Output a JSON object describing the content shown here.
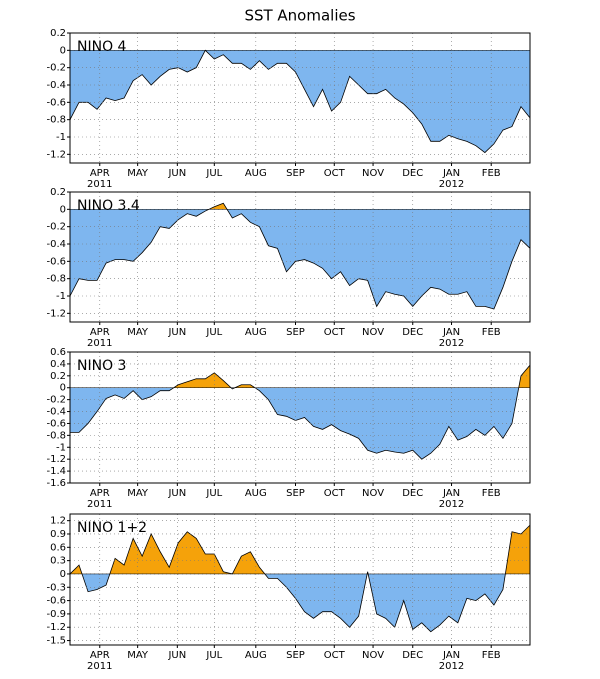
{
  "title": "SST Anomalies",
  "chart_data": [
    {
      "type": "area",
      "label": "NINO 4",
      "ylim": [
        -1.3,
        0.2
      ],
      "yticks": [
        0.2,
        0,
        -0.2,
        -0.4,
        -0.6,
        -0.8,
        -1,
        -1.2
      ],
      "xlim": [
        0,
        51
      ],
      "xticks": [
        {
          "value": 3.3,
          "label": "APR"
        },
        {
          "value": 7.5,
          "label": "MAY"
        },
        {
          "value": 11.9,
          "label": "JUN"
        },
        {
          "value": 16,
          "label": "JUL"
        },
        {
          "value": 20.6,
          "label": "AUG"
        },
        {
          "value": 25,
          "label": "SEP"
        },
        {
          "value": 29.3,
          "label": "OCT"
        },
        {
          "value": 33.6,
          "label": "NOV"
        },
        {
          "value": 38,
          "label": "DEC"
        },
        {
          "value": 42.3,
          "label": "JAN"
        },
        {
          "value": 46.7,
          "label": "FEB"
        }
      ],
      "year_labels": [
        {
          "value": 3.3,
          "label": "2011"
        },
        {
          "value": 42.3,
          "label": "2012"
        }
      ],
      "grid": true,
      "positive_color": "#f5a20a",
      "negative_color": "#7eb6ef",
      "x": [
        0,
        1,
        2,
        3,
        4,
        5,
        6,
        7,
        8,
        9,
        10,
        11,
        12,
        13,
        14,
        15,
        16,
        17,
        18,
        19,
        20,
        21,
        22,
        23,
        24,
        25,
        26,
        27,
        28,
        29,
        30,
        31,
        32,
        33,
        34,
        35,
        36,
        37,
        38,
        39,
        40,
        41,
        42,
        43,
        44,
        45,
        46,
        47,
        48,
        49,
        50,
        51
      ],
      "values": [
        -0.8,
        -0.6,
        -0.6,
        -0.68,
        -0.55,
        -0.58,
        -0.55,
        -0.35,
        -0.28,
        -0.4,
        -0.3,
        -0.22,
        -0.2,
        -0.25,
        -0.2,
        0.0,
        -0.1,
        -0.05,
        -0.15,
        -0.15,
        -0.22,
        -0.12,
        -0.22,
        -0.15,
        -0.15,
        -0.25,
        -0.45,
        -0.65,
        -0.45,
        -0.7,
        -0.6,
        -0.3,
        -0.4,
        -0.5,
        -0.5,
        -0.45,
        -0.55,
        -0.62,
        -0.72,
        -0.85,
        -1.05,
        -1.05,
        -0.98,
        -1.02,
        -1.05,
        -1.1,
        -1.18,
        -1.08,
        -0.92,
        -0.88,
        -0.65,
        -0.78
      ]
    },
    {
      "type": "area",
      "label": "NINO 3.4",
      "ylim": [
        -1.3,
        0.2
      ],
      "yticks": [
        0.2,
        0,
        -0.2,
        -0.4,
        -0.6,
        -0.8,
        -1,
        -1.2
      ],
      "xlim": [
        0,
        51
      ],
      "xticks": [
        {
          "value": 3.3,
          "label": "APR"
        },
        {
          "value": 7.5,
          "label": "MAY"
        },
        {
          "value": 11.9,
          "label": "JUN"
        },
        {
          "value": 16,
          "label": "JUL"
        },
        {
          "value": 20.6,
          "label": "AUG"
        },
        {
          "value": 25,
          "label": "SEP"
        },
        {
          "value": 29.3,
          "label": "OCT"
        },
        {
          "value": 33.6,
          "label": "NOV"
        },
        {
          "value": 38,
          "label": "DEC"
        },
        {
          "value": 42.3,
          "label": "JAN"
        },
        {
          "value": 46.7,
          "label": "FEB"
        }
      ],
      "year_labels": [
        {
          "value": 3.3,
          "label": "2011"
        },
        {
          "value": 42.3,
          "label": "2012"
        }
      ],
      "grid": true,
      "positive_color": "#f5a20a",
      "negative_color": "#7eb6ef",
      "x": [
        0,
        1,
        2,
        3,
        4,
        5,
        6,
        7,
        8,
        9,
        10,
        11,
        12,
        13,
        14,
        15,
        16,
        17,
        18,
        19,
        20,
        21,
        22,
        23,
        24,
        25,
        26,
        27,
        28,
        29,
        30,
        31,
        32,
        33,
        34,
        35,
        36,
        37,
        38,
        39,
        40,
        41,
        42,
        43,
        44,
        45,
        46,
        47,
        48,
        49,
        50,
        51
      ],
      "values": [
        -1.0,
        -0.8,
        -0.82,
        -0.82,
        -0.62,
        -0.58,
        -0.58,
        -0.6,
        -0.5,
        -0.38,
        -0.2,
        -0.22,
        -0.12,
        -0.05,
        -0.08,
        -0.02,
        0.03,
        0.07,
        -0.1,
        -0.05,
        -0.15,
        -0.2,
        -0.42,
        -0.45,
        -0.72,
        -0.6,
        -0.58,
        -0.62,
        -0.68,
        -0.8,
        -0.72,
        -0.88,
        -0.8,
        -0.82,
        -1.12,
        -0.95,
        -0.98,
        -1.0,
        -1.12,
        -1.0,
        -0.9,
        -0.92,
        -0.98,
        -0.98,
        -0.95,
        -1.12,
        -1.12,
        -1.15,
        -0.9,
        -0.6,
        -0.35,
        -0.45
      ]
    },
    {
      "type": "area",
      "label": "NINO 3",
      "ylim": [
        -1.6,
        0.6
      ],
      "yticks": [
        0.6,
        0.4,
        0.2,
        0,
        -0.2,
        -0.4,
        -0.6,
        -0.8,
        -1,
        -1.2,
        -1.4,
        -1.6
      ],
      "xlim": [
        0,
        51
      ],
      "xticks": [
        {
          "value": 3.3,
          "label": "APR"
        },
        {
          "value": 7.5,
          "label": "MAY"
        },
        {
          "value": 11.9,
          "label": "JUN"
        },
        {
          "value": 16,
          "label": "JUL"
        },
        {
          "value": 20.6,
          "label": "AUG"
        },
        {
          "value": 25,
          "label": "SEP"
        },
        {
          "value": 29.3,
          "label": "OCT"
        },
        {
          "value": 33.6,
          "label": "NOV"
        },
        {
          "value": 38,
          "label": "DEC"
        },
        {
          "value": 42.3,
          "label": "JAN"
        },
        {
          "value": 46.7,
          "label": "FEB"
        }
      ],
      "year_labels": [
        {
          "value": 3.3,
          "label": "2011"
        },
        {
          "value": 42.3,
          "label": "2012"
        }
      ],
      "grid": true,
      "positive_color": "#f5a20a",
      "negative_color": "#7eb6ef",
      "x": [
        0,
        1,
        2,
        3,
        4,
        5,
        6,
        7,
        8,
        9,
        10,
        11,
        12,
        13,
        14,
        15,
        16,
        17,
        18,
        19,
        20,
        21,
        22,
        23,
        24,
        25,
        26,
        27,
        28,
        29,
        30,
        31,
        32,
        33,
        34,
        35,
        36,
        37,
        38,
        39,
        40,
        41,
        42,
        43,
        44,
        45,
        46,
        47,
        48,
        49,
        50,
        51
      ],
      "values": [
        -0.75,
        -0.75,
        -0.6,
        -0.4,
        -0.18,
        -0.12,
        -0.18,
        -0.05,
        -0.2,
        -0.15,
        -0.05,
        -0.05,
        0.05,
        0.1,
        0.15,
        0.15,
        0.25,
        0.12,
        -0.02,
        0.05,
        0.05,
        -0.05,
        -0.2,
        -0.45,
        -0.48,
        -0.55,
        -0.5,
        -0.65,
        -0.7,
        -0.62,
        -0.72,
        -0.78,
        -0.85,
        -1.05,
        -1.1,
        -1.05,
        -1.08,
        -1.1,
        -1.05,
        -1.2,
        -1.1,
        -0.95,
        -0.65,
        -0.88,
        -0.82,
        -0.7,
        -0.8,
        -0.65,
        -0.85,
        -0.6,
        0.2,
        0.38
      ]
    },
    {
      "type": "area",
      "label": "NINO 1+2",
      "ylim": [
        -1.6,
        1.35
      ],
      "yticks": [
        1.2,
        0.9,
        0.6,
        0.3,
        0,
        -0.3,
        -0.6,
        -0.9,
        -1.2,
        -1.5
      ],
      "xlim": [
        0,
        51
      ],
      "xticks": [
        {
          "value": 3.3,
          "label": "APR"
        },
        {
          "value": 7.5,
          "label": "MAY"
        },
        {
          "value": 11.9,
          "label": "JUN"
        },
        {
          "value": 16,
          "label": "JUL"
        },
        {
          "value": 20.6,
          "label": "AUG"
        },
        {
          "value": 25,
          "label": "SEP"
        },
        {
          "value": 29.3,
          "label": "OCT"
        },
        {
          "value": 33.6,
          "label": "NOV"
        },
        {
          "value": 38,
          "label": "DEC"
        },
        {
          "value": 42.3,
          "label": "JAN"
        },
        {
          "value": 46.7,
          "label": "FEB"
        }
      ],
      "year_labels": [
        {
          "value": 3.3,
          "label": "2011"
        },
        {
          "value": 42.3,
          "label": "2012"
        }
      ],
      "grid": true,
      "positive_color": "#f5a20a",
      "negative_color": "#7eb6ef",
      "x": [
        0,
        1,
        2,
        3,
        4,
        5,
        6,
        7,
        8,
        9,
        10,
        11,
        12,
        13,
        14,
        15,
        16,
        17,
        18,
        19,
        20,
        21,
        22,
        23,
        24,
        25,
        26,
        27,
        28,
        29,
        30,
        31,
        32,
        33,
        34,
        35,
        36,
        37,
        38,
        39,
        40,
        41,
        42,
        43,
        44,
        45,
        46,
        47,
        48,
        49,
        50,
        51
      ],
      "values": [
        0.0,
        0.2,
        -0.4,
        -0.35,
        -0.25,
        0.35,
        0.2,
        0.8,
        0.4,
        0.9,
        0.5,
        0.15,
        0.7,
        0.95,
        0.8,
        0.45,
        0.45,
        0.05,
        0.0,
        0.4,
        0.5,
        0.15,
        -0.1,
        -0.1,
        -0.3,
        -0.55,
        -0.85,
        -1.0,
        -0.85,
        -0.85,
        -1.0,
        -1.2,
        -0.95,
        0.05,
        -0.9,
        -1.0,
        -1.2,
        -0.6,
        -1.25,
        -1.1,
        -1.3,
        -1.15,
        -0.95,
        -1.1,
        -0.55,
        -0.6,
        -0.45,
        -0.7,
        -0.35,
        0.95,
        0.9,
        1.1
      ]
    }
  ]
}
